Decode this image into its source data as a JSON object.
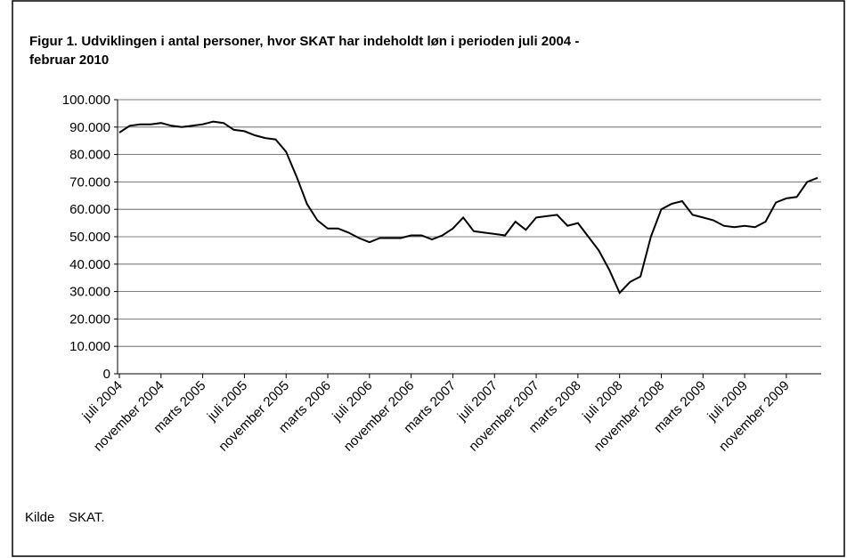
{
  "chart_data": {
    "type": "line",
    "title": "Figur 1. Udviklingen i antal personer, hvor SKAT har indeholdt løn i perioden juli 2004 -",
    "title_line2": "februar 2010",
    "source_label": "Kilde",
    "source": "SKAT.",
    "categories": [
      "juli 2004",
      null,
      null,
      null,
      "november 2004",
      null,
      null,
      null,
      "marts 2005",
      null,
      null,
      null,
      "juli 2005",
      null,
      null,
      null,
      "november 2005",
      null,
      null,
      null,
      "marts 2006",
      null,
      null,
      null,
      "juli 2006",
      null,
      null,
      null,
      "november 2006",
      null,
      null,
      null,
      "marts 2007",
      null,
      null,
      null,
      "juli 2007",
      null,
      null,
      null,
      "november 2007",
      null,
      null,
      null,
      "marts 2008",
      null,
      null,
      null,
      "juli 2008",
      null,
      null,
      null,
      "november 2008",
      null,
      null,
      null,
      "marts 2009",
      null,
      null,
      null,
      "juli 2009",
      null,
      null,
      null,
      "november 2009",
      null,
      null,
      null
    ],
    "series": [
      {
        "name": "Antal personer",
        "color": "#000000",
        "values": [
          88000,
          90500,
          91000,
          91000,
          91500,
          90500,
          90000,
          90500,
          91000,
          92000,
          91500,
          89000,
          88500,
          87000,
          86000,
          85500,
          81000,
          72000,
          62000,
          56000,
          53000,
          53000,
          51500,
          49500,
          48000,
          49500,
          49500,
          49500,
          50500,
          50500,
          49000,
          50500,
          53000,
          57000,
          52000,
          51500,
          51000,
          50500,
          55500,
          52500,
          57000,
          57500,
          58000,
          54000,
          55000,
          50000,
          45000,
          38000,
          29500,
          33500,
          35500,
          50000,
          60000,
          62000,
          63000,
          58000,
          57000,
          56000,
          54000,
          53500,
          54000,
          53500,
          55500,
          62500,
          64000,
          64500,
          70000,
          71500
        ]
      }
    ],
    "ylim": [
      0,
      100000
    ],
    "yticks": [
      0,
      {
        "value": 10000,
        "label": "10.000"
      },
      {
        "value": 20000,
        "label": "20.000"
      },
      {
        "value": 30000,
        "label": "30.000"
      },
      {
        "value": 40000,
        "label": "40.000"
      },
      {
        "value": 50000,
        "label": "50.000"
      },
      {
        "value": 60000,
        "label": "60.000"
      },
      {
        "value": 70000,
        "label": "70.000"
      },
      {
        "value": 80000,
        "label": "80.000"
      },
      {
        "value": 90000,
        "label": "90.000"
      },
      {
        "value": 100000,
        "label": "100.000"
      }
    ],
    "grid": true
  }
}
